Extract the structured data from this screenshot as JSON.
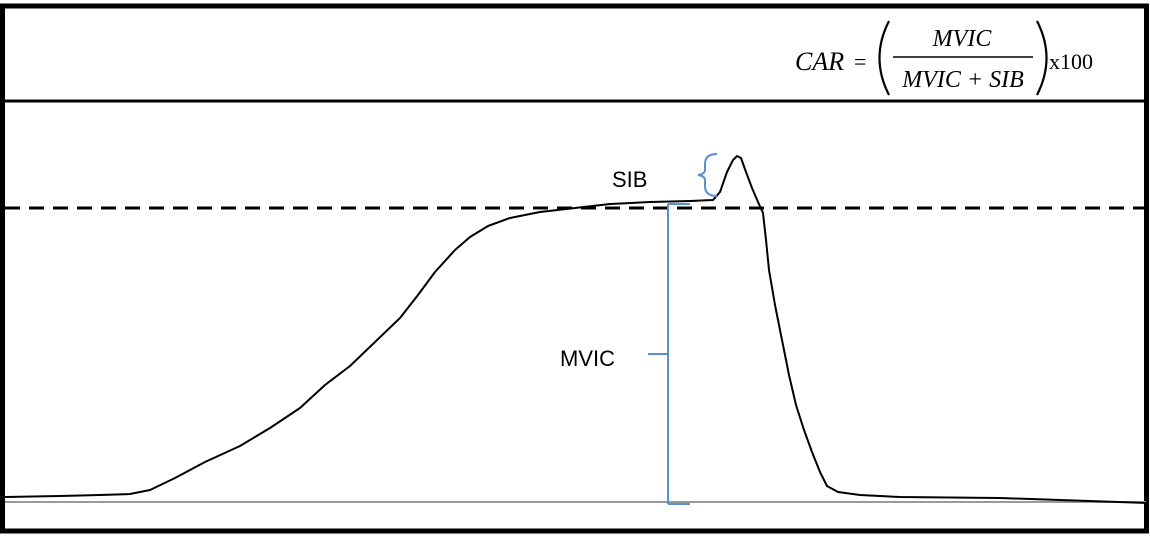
{
  "equation": {
    "lhs": "CAR",
    "equals": "=",
    "numerator": "MVIC",
    "denominator": "MVIC + SIB",
    "multiplier": "x100"
  },
  "annotations": {
    "sib_label": "SIB",
    "mvic_label": "MVIC"
  },
  "colors": {
    "frame": "#000000",
    "trace": "#000000",
    "reference_line": "#000000",
    "baseline": "#9a9a9a",
    "bracket": "#5b8fd0"
  }
}
